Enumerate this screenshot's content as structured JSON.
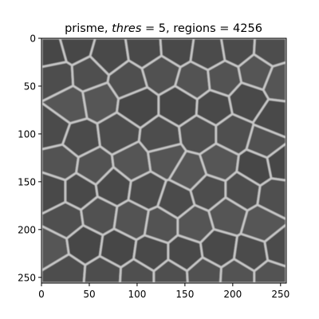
{
  "chart_data": {
    "type": "heatmap",
    "title": {
      "prefix": "prisme, ",
      "param_name": "thres",
      "param_eq": " = ",
      "param_value": "5",
      "sep": ", regions",
      "regions_eq": " = ",
      "regions_value": "4256"
    },
    "xlabel": "",
    "ylabel": "",
    "xlim": [
      0,
      256
    ],
    "ylim": [
      256,
      0
    ],
    "x_ticks": [
      0,
      50,
      100,
      150,
      200,
      250
    ],
    "y_ticks": [
      0,
      50,
      100,
      150,
      200,
      250
    ],
    "colormap": "gray",
    "background_color": "#4a4a4a",
    "cell_color": "#505050",
    "edge_color": "#c8c8c8",
    "grid": false,
    "legend": "none",
    "cell_seeds": [
      [
        10,
        15
      ],
      [
        35,
        8
      ],
      [
        70,
        18
      ],
      [
        110,
        12
      ],
      [
        140,
        10
      ],
      [
        175,
        15
      ],
      [
        205,
        10
      ],
      [
        240,
        12
      ],
      [
        15,
        40
      ],
      [
        50,
        38
      ],
      [
        90,
        45
      ],
      [
        125,
        35
      ],
      [
        160,
        45
      ],
      [
        190,
        42
      ],
      [
        225,
        35
      ],
      [
        250,
        45
      ],
      [
        30,
        70
      ],
      [
        60,
        65
      ],
      [
        100,
        70
      ],
      [
        145,
        70
      ],
      [
        180,
        72
      ],
      [
        215,
        65
      ],
      [
        245,
        85
      ],
      [
        12,
        95
      ],
      [
        40,
        105
      ],
      [
        80,
        100
      ],
      [
        125,
        105
      ],
      [
        165,
        100
      ],
      [
        200,
        100
      ],
      [
        235,
        110
      ],
      [
        20,
        130
      ],
      [
        55,
        135
      ],
      [
        95,
        130
      ],
      [
        130,
        125
      ],
      [
        155,
        140
      ],
      [
        185,
        130
      ],
      [
        225,
        135
      ],
      [
        250,
        130
      ],
      [
        10,
        160
      ],
      [
        40,
        160
      ],
      [
        75,
        155
      ],
      [
        110,
        160
      ],
      [
        140,
        170
      ],
      [
        175,
        160
      ],
      [
        210,
        160
      ],
      [
        245,
        165
      ],
      [
        25,
        190
      ],
      [
        60,
        185
      ],
      [
        95,
        190
      ],
      [
        125,
        195
      ],
      [
        160,
        195
      ],
      [
        195,
        185
      ],
      [
        230,
        195
      ],
      [
        10,
        220
      ],
      [
        45,
        215
      ],
      [
        80,
        220
      ],
      [
        115,
        225
      ],
      [
        150,
        225
      ],
      [
        185,
        220
      ],
      [
        220,
        225
      ],
      [
        250,
        220
      ],
      [
        25,
        245
      ],
      [
        65,
        248
      ],
      [
        100,
        250
      ],
      [
        135,
        250
      ],
      [
        170,
        248
      ],
      [
        205,
        250
      ],
      [
        240,
        250
      ]
    ]
  }
}
